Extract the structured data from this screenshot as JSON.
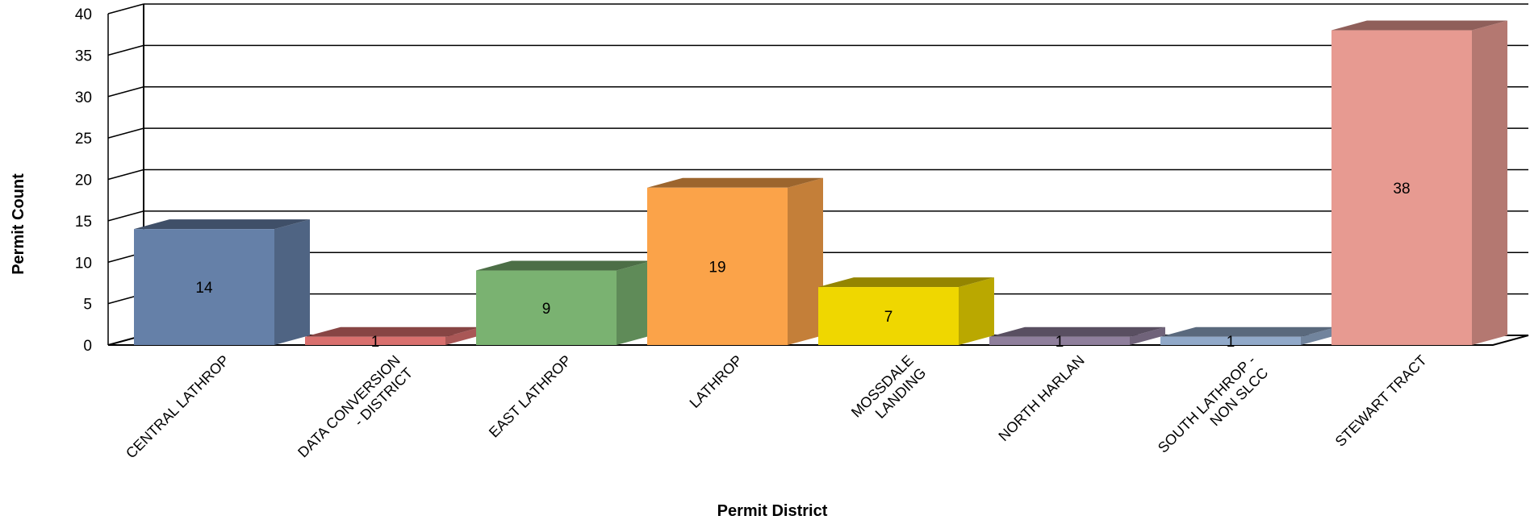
{
  "chart_data": {
    "type": "bar",
    "categories": [
      "CENTRAL LATHROP",
      "DATA CONVERSION - DISTRICT",
      "EAST LATHROP",
      "LATHROP",
      "MOSSDALE LANDING",
      "NORTH HARLAN",
      "SOUTH LATHROP - NON SLCC",
      "STEWART TRACT"
    ],
    "category_lines": [
      [
        "CENTRAL LATHROP"
      ],
      [
        "DATA CONVERSION",
        "- DISTRICT"
      ],
      [
        "EAST LATHROP"
      ],
      [
        "LATHROP"
      ],
      [
        "MOSSDALE",
        "LANDING"
      ],
      [
        "NORTH HARLAN"
      ],
      [
        "SOUTH LATHROP -",
        "NON SLCC"
      ],
      [
        "STEWART TRACT"
      ]
    ],
    "values": [
      14,
      1,
      9,
      19,
      7,
      1,
      1,
      38
    ],
    "data_labels": [
      "14",
      "1",
      "9",
      "19",
      "7",
      "1",
      "1",
      "38"
    ],
    "colors": [
      "#6580a8",
      "#d9706e",
      "#7ab271",
      "#fba349",
      "#efd700",
      "#8f7f9c",
      "#91a9c9",
      "#e79a91"
    ],
    "xlabel": "Permit District",
    "ylabel": "Permit Count",
    "ylim": [
      0,
      40
    ],
    "yticks": [
      0,
      5,
      10,
      15,
      20,
      25,
      30,
      35,
      40
    ],
    "grid": true,
    "legend": "none",
    "style": "3d-bar"
  }
}
